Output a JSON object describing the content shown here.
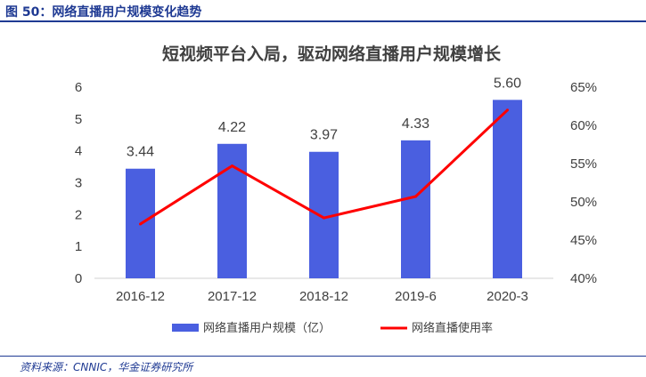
{
  "header": {
    "figure_title": "图 50：网络直播用户规模变化趋势"
  },
  "footer": {
    "source": "资料来源：CNNIC，华金证券研究所"
  },
  "chart_data": {
    "type": "bar",
    "title": "短视频平台入局，驱动网络直播用户规模增长",
    "categories": [
      "2016-12",
      "2017-12",
      "2018-12",
      "2019-6",
      "2020-3"
    ],
    "series": [
      {
        "name": "网络直播用户规模（亿）",
        "type": "bar",
        "axis": "left",
        "values": [
          3.44,
          4.22,
          3.97,
          4.33,
          5.6
        ],
        "labels": [
          "3.44",
          "4.22",
          "3.97",
          "4.33",
          "5.60"
        ],
        "color": "#4a5fe0"
      },
      {
        "name": "网络直播使用率",
        "type": "line",
        "axis": "right",
        "values": [
          47.1,
          54.7,
          47.9,
          50.7,
          62.0
        ],
        "color": "#ff0000"
      }
    ],
    "y_left": {
      "min": 0,
      "max": 6,
      "ticks": [
        "0",
        "1",
        "2",
        "3",
        "4",
        "5",
        "6"
      ]
    },
    "y_right": {
      "min": 40,
      "max": 65,
      "ticks": [
        "40%",
        "45%",
        "50%",
        "55%",
        "60%",
        "65%"
      ]
    },
    "grid": false,
    "legend_position": "bottom"
  }
}
